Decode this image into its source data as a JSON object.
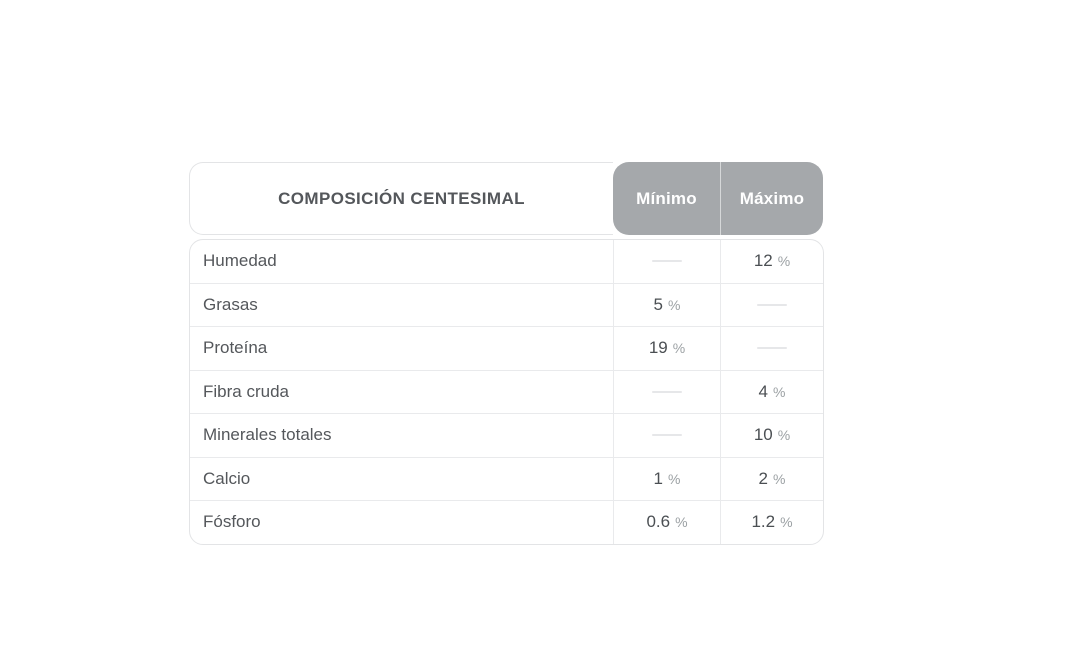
{
  "chart_data": {
    "type": "table",
    "title": "COMPOSICIÓN CENTESIMAL",
    "columns": [
      "Mínimo",
      "Máximo"
    ],
    "unit": "%",
    "empty_cell_marker": "dash",
    "rows": [
      {
        "label": "Humedad",
        "min": null,
        "max": "12",
        "unit": "%"
      },
      {
        "label": "Grasas",
        "min": "5",
        "max": null,
        "unit": "%"
      },
      {
        "label": "Proteína",
        "min": "19",
        "max": null,
        "unit": "%"
      },
      {
        "label": "Fibra cruda",
        "min": null,
        "max": "4",
        "unit": "%"
      },
      {
        "label": "Minerales totales",
        "min": null,
        "max": "10",
        "unit": "%"
      },
      {
        "label": "Calcio",
        "min": "1",
        "max": "2",
        "unit": "%"
      },
      {
        "label": "Fósforo",
        "min": "0.6",
        "max": "1.2",
        "unit": "%"
      }
    ]
  },
  "colors": {
    "header_bg": "#a5a8ab",
    "header_text": "#ffffff",
    "title_text": "#54575b",
    "label_text": "#54575b",
    "value_text": "#4b4f53",
    "unit_text": "#9ca1a4",
    "border": "#e3e4e6",
    "dash": "#e6e7e9",
    "page_bg": "#ffffff"
  }
}
